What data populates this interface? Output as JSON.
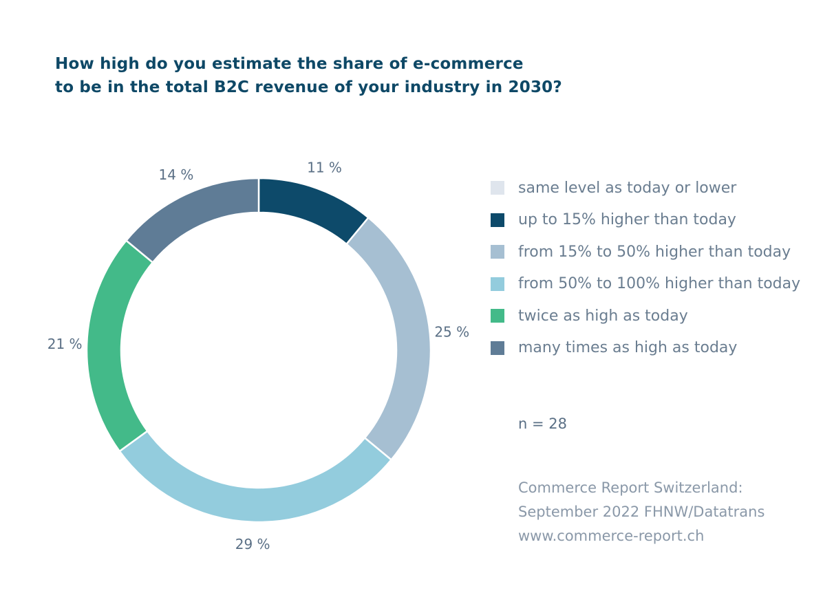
{
  "title_lines": [
    "How high do you estimate the share of e-commerce",
    "to be in the total B2C revenue of your industry in 2030?"
  ],
  "chart_data": {
    "type": "pie",
    "donut": true,
    "title": "How high do you estimate the share of e-commerce to be in the total B2C revenue of your industry in 2030?",
    "categories": [
      "same level as today or lower",
      "up to 15% higher than today",
      "from 15% to 50% higher than today",
      "from 50% to 100% higher than today",
      "twice as high as today",
      "many times as high as today"
    ],
    "values": [
      0,
      11,
      25,
      29,
      21,
      14
    ],
    "value_labels": [
      "",
      "11 %",
      "25 %",
      "29 %",
      "21 %",
      "14 %"
    ],
    "colors": [
      "#dfe5ed",
      "#0d4a6a",
      "#a6bfd2",
      "#93ccdd",
      "#43ba89",
      "#5f7c96"
    ],
    "legend": "right",
    "n": "n = 28"
  },
  "source_lines": [
    "Commerce Report Switzerland:",
    "September 2022 FHNW/Datatrans",
    "www.commerce-report.ch"
  ]
}
